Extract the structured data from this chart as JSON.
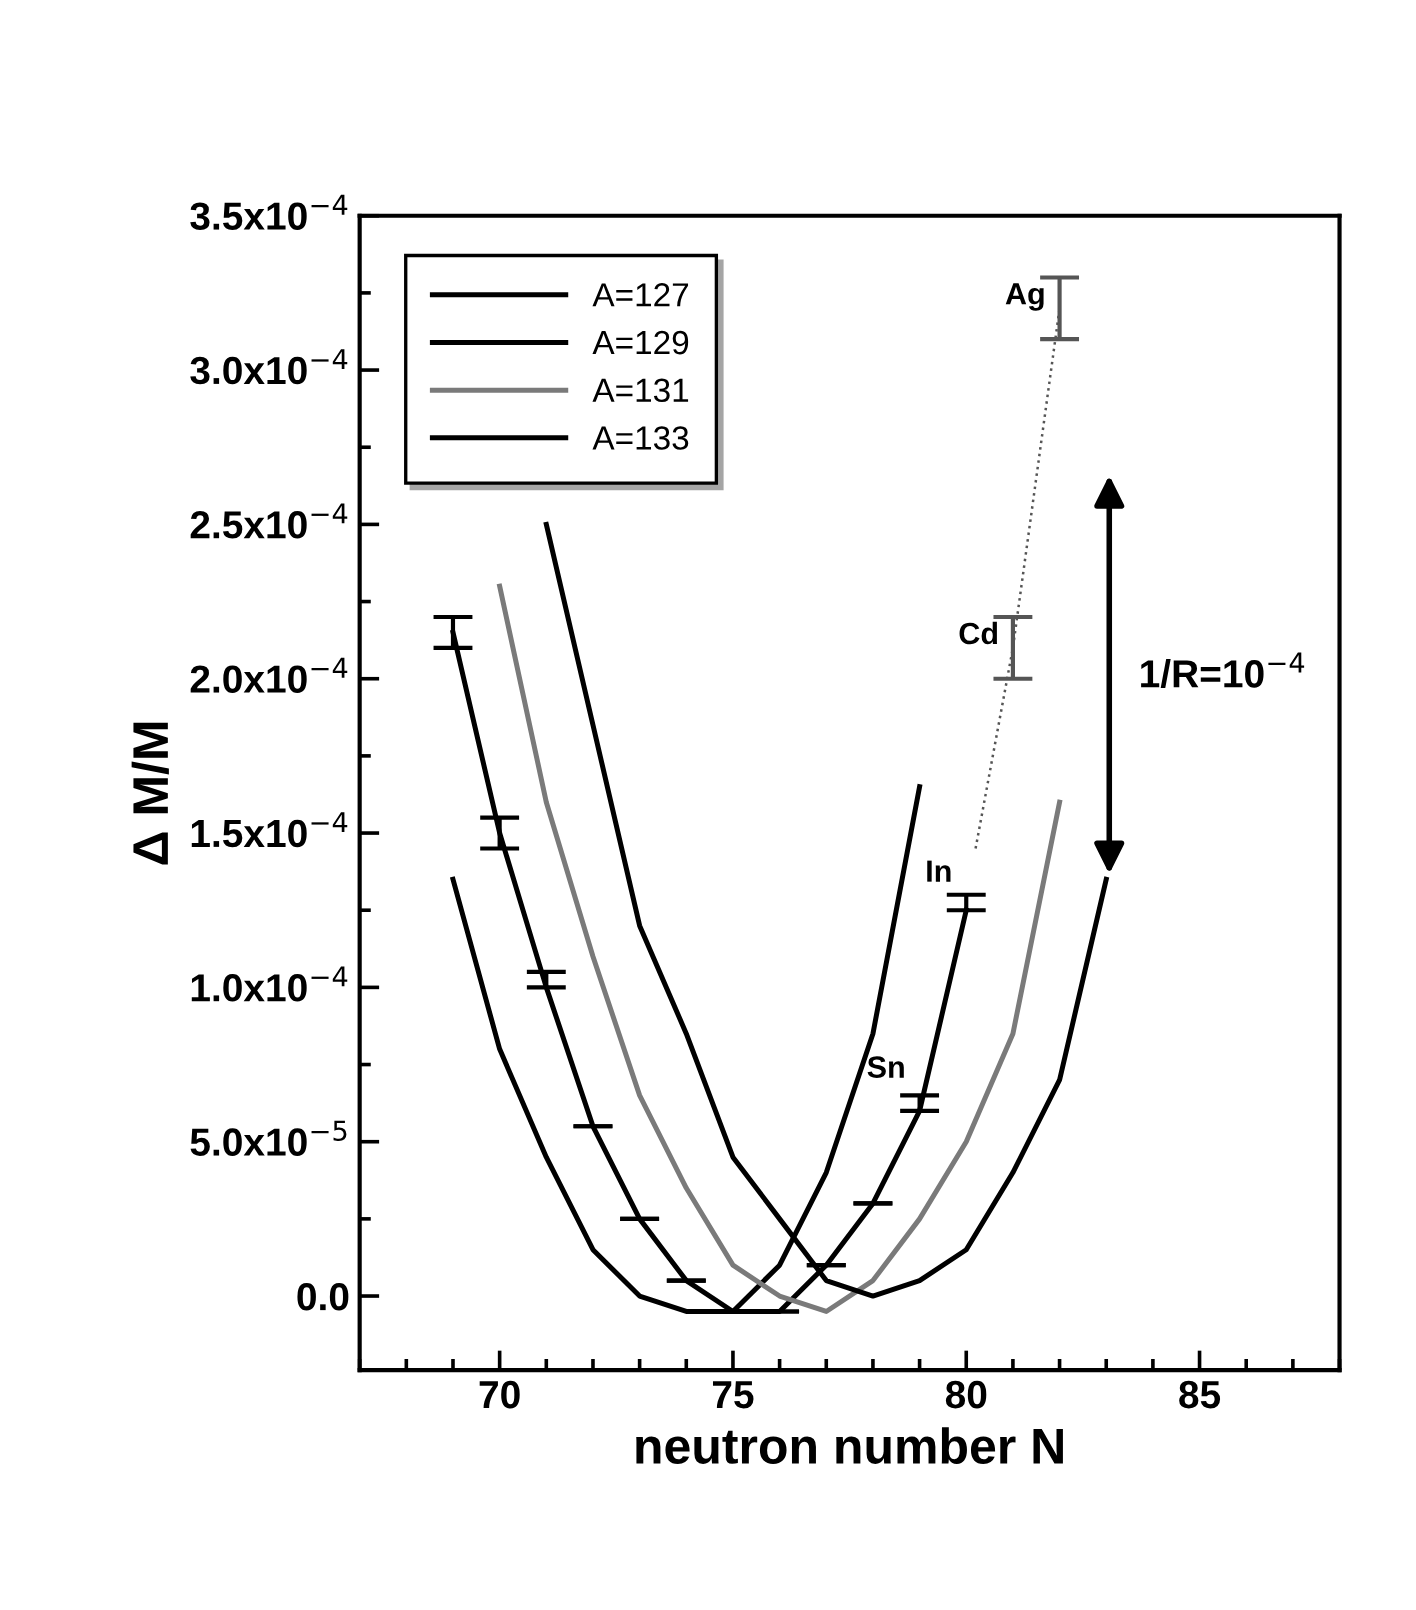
{
  "chart_data": {
    "type": "line",
    "xlabel": "neutron number N",
    "ylabel": "Δ M/M",
    "xlim": [
      67,
      88
    ],
    "xticks": [
      70,
      75,
      80,
      85
    ],
    "ylim": [
      -2.4e-05,
      0.00035
    ],
    "yticks": [
      {
        "value": 0,
        "label": "0.0"
      },
      {
        "value": 5e-05,
        "label": "5.0x10$^{−5}$"
      },
      {
        "value": 0.0001,
        "label": "1.0x10$^{−4}$"
      },
      {
        "value": 0.00015,
        "label": "1.5x10$^{−4}$"
      },
      {
        "value": 0.0002,
        "label": "2.0x10$^{−4}$"
      },
      {
        "value": 0.00025,
        "label": "2.5x10$^{−4}$"
      },
      {
        "value": 0.0003,
        "label": "3.0x10$^{−4}$"
      },
      {
        "value": 0.00035,
        "label": "3.5x10$^{−4}$"
      }
    ],
    "grid": false,
    "legend": "top left",
    "marker": "none",
    "series": [
      {
        "name": "A=127",
        "color": "#000000",
        "x": [
          69,
          70,
          71,
          72,
          73,
          74,
          75,
          76,
          77,
          78,
          79
        ],
        "values": [
          0.000135,
          8e-05,
          4.5e-05,
          1.5e-05,
          0,
          -5e-06,
          -5e-06,
          1e-05,
          4e-05,
          8.5e-05,
          0.000165
        ]
      },
      {
        "name": "A=129",
        "color": "#000000",
        "x": [
          69,
          70,
          71,
          72,
          73,
          74,
          75,
          76,
          77,
          78,
          79,
          80
        ],
        "values": [
          0.000215,
          0.00015,
          0.0001,
          5.5e-05,
          2.5e-05,
          5e-06,
          -5e-06,
          -5e-06,
          1e-05,
          3e-05,
          6e-05,
          0.000125
        ],
        "errors": [
          [
            0.00021,
            0.00022
          ],
          [
            0.000145,
            0.000155
          ],
          [
            0.0001,
            0.000105
          ],
          0,
          0,
          0,
          0,
          0,
          0,
          0,
          [
            6e-05,
            6.5e-05
          ],
          [
            0.000125,
            0.00013
          ]
        ]
      },
      {
        "name": "A=131",
        "color": "#7a7a7a",
        "x": [
          70,
          71,
          72,
          73,
          74,
          75,
          76,
          77,
          78,
          79,
          80,
          81,
          82
        ],
        "values": [
          0.00023,
          0.00016,
          0.00011,
          6.5e-05,
          3.5e-05,
          1e-05,
          0,
          -5e-06,
          5e-06,
          2.5e-05,
          5e-05,
          8.5e-05,
          0.00016
        ]
      },
      {
        "name": "A=133",
        "color": "#000000",
        "x": [
          71,
          72,
          73,
          74,
          75,
          76,
          77,
          78,
          79,
          80,
          81,
          82,
          83
        ],
        "values": [
          0.00025,
          0.000185,
          0.00012,
          8.5e-05,
          4.5e-05,
          2.5e-05,
          5e-06,
          0,
          5e-06,
          1.5e-05,
          4e-05,
          7e-05,
          0.000135
        ]
      },
      {
        "type": "line",
        "line_style": "dotted",
        "color": "#555555",
        "x": [
          80.2,
          81,
          82
        ],
        "values": [
          0.000145,
          0.00021,
          0.00032
        ],
        "errors": [
          null,
          [
            0.0002,
            0.00022
          ],
          [
            0.00031,
            0.00033
          ]
        ]
      }
    ],
    "annotations": [
      {
        "text": "Sn",
        "x": 79,
        "y": 6.15e-05
      },
      {
        "text": "In",
        "x": 80,
        "y": 0.000125
      },
      {
        "text": "Cd",
        "x": 81,
        "y": 0.000202
      },
      {
        "text": "Ag",
        "x": 82,
        "y": 0.000312
      },
      "1/R=10$^{−4}$"
    ]
  }
}
